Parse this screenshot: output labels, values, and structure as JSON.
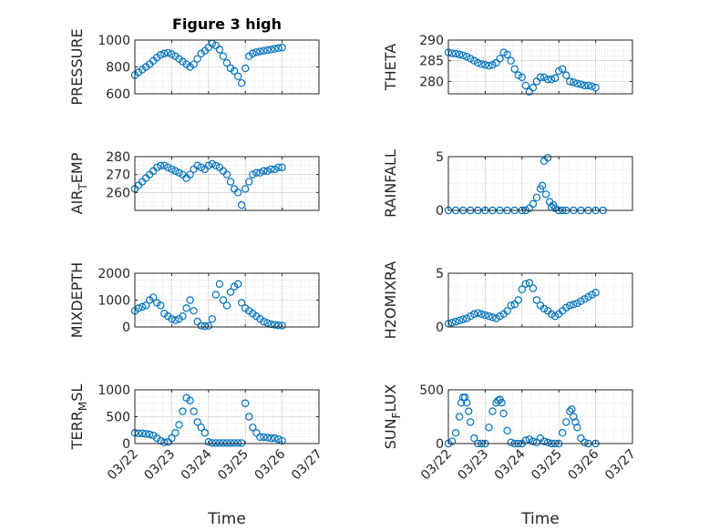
{
  "figure": {
    "title": "Figure 3 high"
  },
  "style": {
    "marker_color": "#0072BD",
    "axis_color": "#262626",
    "grid_color": "#c8c8c8"
  },
  "chart_data": [
    {
      "type": "scatter",
      "ylabel": "PRESSURE",
      "ylabel_sub": "",
      "ylabel_tail": "",
      "title": "Figure 3 high",
      "ylim": [
        600,
        1000
      ],
      "yticks": [
        600,
        800,
        1000
      ],
      "ytick_labels": [
        "600",
        "800",
        "1000"
      ],
      "xlim": [
        0,
        5
      ],
      "grid": true,
      "show_xticklabels": false,
      "x": [
        0,
        0.1,
        0.2,
        0.3,
        0.4,
        0.5,
        0.6,
        0.7,
        0.8,
        0.9,
        1.0,
        1.1,
        1.2,
        1.3,
        1.4,
        1.5,
        1.6,
        1.7,
        1.8,
        1.9,
        2.0,
        2.1,
        2.2,
        2.3,
        2.4,
        2.5,
        2.6,
        2.7,
        2.8,
        2.9,
        3.0,
        3.1,
        3.2,
        3.3,
        3.4,
        3.5,
        3.6,
        3.7,
        3.8,
        3.9,
        4.0
      ],
      "y": [
        740,
        760,
        780,
        800,
        820,
        845,
        870,
        890,
        900,
        905,
        895,
        880,
        860,
        840,
        820,
        800,
        820,
        860,
        900,
        920,
        945,
        975,
        960,
        930,
        880,
        830,
        790,
        770,
        730,
        680,
        790,
        880,
        900,
        910,
        915,
        920,
        925,
        930,
        935,
        940,
        945
      ]
    },
    {
      "type": "scatter",
      "ylabel": "THETA",
      "ylabel_sub": "",
      "ylabel_tail": "",
      "title": "",
      "ylim": [
        277,
        290
      ],
      "yticks": [
        280,
        285,
        290
      ],
      "ytick_labels": [
        "280",
        "285",
        "290"
      ],
      "xlim": [
        0,
        5
      ],
      "grid": true,
      "show_xticklabels": false,
      "x": [
        0,
        0.1,
        0.2,
        0.3,
        0.4,
        0.5,
        0.6,
        0.7,
        0.8,
        0.9,
        1.0,
        1.1,
        1.2,
        1.3,
        1.4,
        1.5,
        1.6,
        1.7,
        1.8,
        1.9,
        2.0,
        2.1,
        2.2,
        2.3,
        2.4,
        2.5,
        2.6,
        2.7,
        2.8,
        2.9,
        3.0,
        3.1,
        3.2,
        3.3,
        3.4,
        3.5,
        3.6,
        3.7,
        3.8,
        3.9,
        4.0
      ],
      "y": [
        287,
        286.8,
        286.7,
        286.5,
        286.3,
        286,
        285.5,
        285,
        284.5,
        284.2,
        284,
        283.8,
        284,
        284.5,
        285.5,
        287,
        286.5,
        285,
        283,
        281.5,
        281,
        279,
        277.5,
        278.5,
        280,
        281,
        281,
        280.5,
        280.5,
        280.8,
        282.5,
        283,
        281.5,
        280,
        279.8,
        279.5,
        279.3,
        279,
        279,
        278.8,
        278.5
      ]
    },
    {
      "type": "scatter",
      "ylabel": "AIR",
      "ylabel_sub": "T",
      "ylabel_tail": "EMP",
      "title": "",
      "ylim": [
        250,
        280
      ],
      "yticks": [
        260,
        270,
        280
      ],
      "ytick_labels": [
        "260",
        "270",
        "280"
      ],
      "xlim": [
        0,
        5
      ],
      "grid": true,
      "show_xticklabels": false,
      "x": [
        0,
        0.1,
        0.2,
        0.3,
        0.4,
        0.5,
        0.6,
        0.7,
        0.8,
        0.9,
        1.0,
        1.1,
        1.2,
        1.3,
        1.4,
        1.5,
        1.6,
        1.7,
        1.8,
        1.9,
        2.0,
        2.1,
        2.2,
        2.3,
        2.4,
        2.5,
        2.6,
        2.7,
        2.8,
        2.9,
        3.0,
        3.1,
        3.2,
        3.3,
        3.4,
        3.5,
        3.6,
        3.7,
        3.8,
        3.9,
        4.0
      ],
      "y": [
        262,
        264,
        266,
        268,
        270,
        272,
        274,
        275,
        275,
        274,
        273,
        272,
        271,
        270,
        268,
        270,
        273,
        275,
        274,
        273,
        275,
        276,
        275,
        274,
        272,
        270,
        266,
        262,
        260,
        253,
        262,
        266,
        270,
        271,
        271,
        272,
        272,
        273,
        273,
        274,
        274
      ]
    },
    {
      "type": "scatter",
      "ylabel": "RAINFALL",
      "ylabel_sub": "",
      "ylabel_tail": "",
      "title": "",
      "ylim": [
        0,
        5
      ],
      "yticks": [
        0,
        5
      ],
      "ytick_labels": [
        "0",
        "5"
      ],
      "xlim": [
        0,
        5
      ],
      "grid": true,
      "show_xticklabels": false,
      "x": [
        0,
        0.2,
        0.4,
        0.6,
        0.8,
        1.0,
        1.2,
        1.4,
        1.6,
        1.8,
        2.0,
        2.1,
        2.2,
        2.3,
        2.4,
        2.5,
        2.55,
        2.6,
        2.65,
        2.7,
        2.75,
        2.8,
        2.85,
        2.9,
        3.0,
        3.1,
        3.2,
        3.4,
        3.6,
        3.8,
        4.0,
        4.2
      ],
      "y": [
        0,
        0,
        0,
        0,
        0,
        0,
        0,
        0,
        0,
        0,
        0,
        0,
        0.2,
        0.6,
        1.2,
        2.0,
        2.3,
        4.6,
        1.5,
        4.9,
        0.8,
        0.3,
        0.5,
        0.2,
        0,
        0,
        0,
        0,
        0,
        0,
        0,
        0
      ]
    },
    {
      "type": "scatter",
      "ylabel": "MIXDEPTH",
      "ylabel_sub": "",
      "ylabel_tail": "",
      "title": "",
      "ylim": [
        0,
        2000
      ],
      "yticks": [
        0,
        1000,
        2000
      ],
      "ytick_labels": [
        "0",
        "1000",
        "2000"
      ],
      "xlim": [
        0,
        5
      ],
      "grid": true,
      "show_xticklabels": false,
      "x": [
        0,
        0.1,
        0.2,
        0.3,
        0.4,
        0.5,
        0.6,
        0.7,
        0.8,
        0.9,
        1.0,
        1.1,
        1.2,
        1.3,
        1.4,
        1.5,
        1.6,
        1.7,
        1.8,
        1.9,
        2.0,
        2.1,
        2.2,
        2.3,
        2.4,
        2.5,
        2.6,
        2.7,
        2.8,
        2.9,
        3.0,
        3.1,
        3.2,
        3.3,
        3.4,
        3.5,
        3.6,
        3.7,
        3.8,
        3.9,
        4.0
      ],
      "y": [
        600,
        700,
        750,
        800,
        1000,
        1100,
        900,
        800,
        500,
        400,
        300,
        250,
        300,
        400,
        700,
        1000,
        600,
        200,
        50,
        30,
        40,
        300,
        1200,
        1600,
        1000,
        800,
        1300,
        1500,
        1600,
        900,
        700,
        600,
        500,
        400,
        300,
        200,
        150,
        100,
        80,
        60,
        50
      ]
    },
    {
      "type": "scatter",
      "ylabel": "H2OMIXRA",
      "ylabel_sub": "",
      "ylabel_tail": "",
      "title": "",
      "ylim": [
        0,
        5
      ],
      "yticks": [
        0,
        5
      ],
      "ytick_labels": [
        "0",
        "5"
      ],
      "xlim": [
        0,
        5
      ],
      "grid": true,
      "show_xticklabels": false,
      "x": [
        0,
        0.1,
        0.2,
        0.3,
        0.4,
        0.5,
        0.6,
        0.7,
        0.8,
        0.9,
        1.0,
        1.1,
        1.2,
        1.3,
        1.4,
        1.5,
        1.6,
        1.7,
        1.8,
        1.9,
        2.0,
        2.1,
        2.2,
        2.3,
        2.4,
        2.5,
        2.6,
        2.7,
        2.8,
        2.9,
        3.0,
        3.1,
        3.2,
        3.3,
        3.4,
        3.5,
        3.6,
        3.7,
        3.8,
        3.9,
        4.0
      ],
      "y": [
        0.3,
        0.4,
        0.5,
        0.6,
        0.7,
        0.8,
        1.0,
        1.2,
        1.3,
        1.2,
        1.1,
        1.0,
        0.9,
        0.8,
        1.0,
        1.2,
        1.5,
        2.0,
        2.1,
        2.5,
        3.5,
        4.0,
        4.1,
        3.6,
        2.5,
        2.0,
        1.7,
        1.5,
        1.2,
        1.0,
        1.2,
        1.5,
        1.8,
        2.0,
        2.1,
        2.2,
        2.4,
        2.6,
        2.8,
        3.0,
        3.2
      ]
    },
    {
      "type": "scatter",
      "ylabel": "TERR",
      "ylabel_sub": "M",
      "ylabel_tail": "SL",
      "title": "",
      "ylim": [
        0,
        1000
      ],
      "yticks": [
        0,
        500,
        1000
      ],
      "ytick_labels": [
        "0",
        "500",
        "1000"
      ],
      "xlim": [
        0,
        5
      ],
      "grid": true,
      "show_xticklabels": true,
      "xticks": [
        0,
        1,
        2,
        3,
        4,
        5
      ],
      "xtick_labels": [
        "03/22",
        "03/23",
        "03/24",
        "03/25",
        "03/26",
        "03/27"
      ],
      "xlabel": "Time",
      "x": [
        0,
        0.1,
        0.2,
        0.3,
        0.4,
        0.5,
        0.6,
        0.7,
        0.8,
        0.9,
        1.0,
        1.1,
        1.2,
        1.3,
        1.4,
        1.5,
        1.6,
        1.7,
        1.8,
        1.9,
        2.0,
        2.1,
        2.2,
        2.3,
        2.4,
        2.5,
        2.6,
        2.7,
        2.8,
        2.9,
        3.0,
        3.1,
        3.2,
        3.3,
        3.4,
        3.5,
        3.6,
        3.7,
        3.8,
        3.9,
        4.0
      ],
      "y": [
        200,
        190,
        190,
        180,
        170,
        150,
        100,
        50,
        20,
        30,
        100,
        200,
        350,
        600,
        850,
        800,
        600,
        400,
        300,
        200,
        30,
        10,
        10,
        10,
        10,
        10,
        10,
        10,
        10,
        10,
        750,
        500,
        300,
        200,
        120,
        120,
        110,
        100,
        100,
        80,
        50
      ]
    },
    {
      "type": "scatter",
      "ylabel": "SUN",
      "ylabel_sub": "F",
      "ylabel_tail": "LUX",
      "title": "",
      "ylim": [
        0,
        500
      ],
      "yticks": [
        0,
        500
      ],
      "ytick_labels": [
        "0",
        "500"
      ],
      "xlim": [
        0,
        5
      ],
      "grid": true,
      "show_xticklabels": true,
      "xticks": [
        0,
        1,
        2,
        3,
        4,
        5
      ],
      "xtick_labels": [
        "03/22",
        "03/23",
        "03/24",
        "03/25",
        "03/26",
        "03/27"
      ],
      "xlabel": "Time",
      "x": [
        0,
        0.1,
        0.2,
        0.3,
        0.35,
        0.4,
        0.45,
        0.5,
        0.55,
        0.6,
        0.7,
        0.8,
        0.9,
        1.0,
        1.1,
        1.2,
        1.3,
        1.35,
        1.4,
        1.45,
        1.5,
        1.6,
        1.7,
        1.8,
        1.9,
        2.0,
        2.1,
        2.2,
        2.3,
        2.4,
        2.5,
        2.6,
        2.7,
        2.8,
        2.9,
        3.0,
        3.1,
        3.2,
        3.3,
        3.35,
        3.4,
        3.45,
        3.5,
        3.6,
        3.7,
        3.8,
        4.0
      ],
      "y": [
        0,
        20,
        100,
        250,
        380,
        430,
        430,
        380,
        300,
        200,
        50,
        0,
        0,
        0,
        150,
        300,
        380,
        400,
        410,
        380,
        280,
        120,
        10,
        0,
        0,
        0,
        30,
        40,
        20,
        10,
        50,
        20,
        10,
        0,
        0,
        0,
        100,
        200,
        300,
        320,
        250,
        200,
        150,
        50,
        10,
        0,
        0
      ]
    }
  ]
}
